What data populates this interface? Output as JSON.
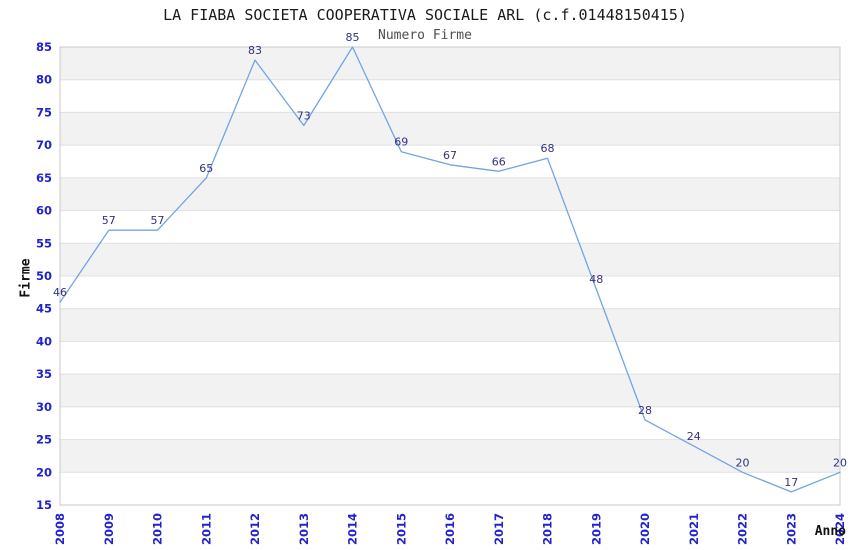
{
  "chart_data": {
    "type": "line",
    "title": "LA FIABA SOCIETA COOPERATIVA SOCIALE ARL (c.f.01448150415)",
    "subtitle": "Numero Firme",
    "xlabel": "Anno",
    "ylabel": "Firme",
    "categories": [
      "2008",
      "2009",
      "2010",
      "2011",
      "2012",
      "2013",
      "2014",
      "2015",
      "2016",
      "2017",
      "2018",
      "2019",
      "2020",
      "2021",
      "2022",
      "2023",
      "2024"
    ],
    "values": [
      46,
      57,
      57,
      65,
      83,
      73,
      85,
      69,
      67,
      66,
      68,
      48,
      28,
      24,
      20,
      17,
      20
    ],
    "ylim": [
      15,
      85
    ],
    "ytick_step": 5,
    "grid": "horizontal-bands",
    "legend_position": "none",
    "data_labels_shown": true,
    "colors": {
      "line": "#74a3e3",
      "tick_label": "#2222cc",
      "point_label": "#32327d",
      "band_gray": "#f2f2f2",
      "band_white": "#ffffff",
      "gridline": "#e0e0e0",
      "plot_border": "#c9c9c9",
      "title": "#1a1a1a",
      "subtitle": "#4f4f4f",
      "axis_title": "#111111"
    }
  }
}
